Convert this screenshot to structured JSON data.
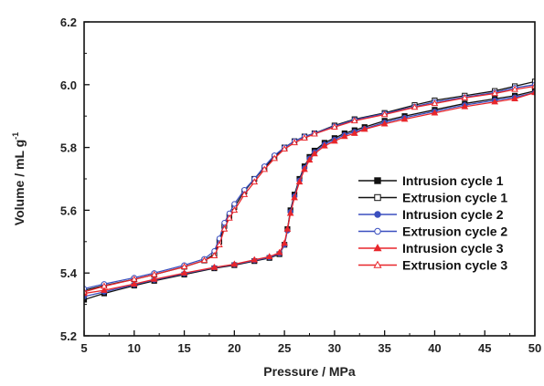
{
  "chart_data": {
    "type": "line",
    "xlabel": "Pressure / MPa",
    "ylabel": "Volume / mL g",
    "ylabel_sup": "-1",
    "xlim": [
      5,
      50
    ],
    "ylim": [
      5.2,
      6.2
    ],
    "xticks": [
      5,
      10,
      15,
      20,
      25,
      30,
      35,
      40,
      45,
      50
    ],
    "yticks": [
      5.2,
      5.4,
      5.6,
      5.8,
      6.0,
      6.2
    ],
    "ytick_labels": [
      "5.2",
      "5.4",
      "5.6",
      "5.8",
      "6.0",
      "6.2"
    ],
    "grid": false,
    "legend_position": "right",
    "series": [
      {
        "name": "Intrusion cycle 1",
        "color": "#111111",
        "marker": "square",
        "filled": true,
        "x": [
          5,
          7,
          10,
          12,
          15,
          18,
          20,
          22,
          23.5,
          24.5,
          25,
          25.3,
          25.6,
          26,
          26.5,
          27,
          27.5,
          28,
          29,
          30,
          31,
          32,
          33,
          35,
          37,
          40,
          43,
          46,
          48,
          50
        ],
        "y": [
          5.315,
          5.335,
          5.36,
          5.375,
          5.395,
          5.415,
          5.425,
          5.438,
          5.448,
          5.46,
          5.49,
          5.54,
          5.6,
          5.65,
          5.7,
          5.74,
          5.77,
          5.79,
          5.815,
          5.83,
          5.845,
          5.855,
          5.865,
          5.885,
          5.9,
          5.92,
          5.94,
          5.955,
          5.965,
          5.98
        ]
      },
      {
        "name": "Extrusion cycle 1",
        "color": "#111111",
        "marker": "square",
        "filled": false,
        "x": [
          5,
          7,
          10,
          12,
          15,
          17,
          18,
          18.5,
          19,
          19.5,
          20,
          21,
          22,
          23,
          24,
          25,
          26,
          27,
          28,
          30,
          32,
          35,
          38,
          40,
          43,
          46,
          48,
          50
        ],
        "y": [
          5.345,
          5.36,
          5.38,
          5.395,
          5.42,
          5.44,
          5.46,
          5.5,
          5.55,
          5.58,
          5.61,
          5.66,
          5.7,
          5.735,
          5.77,
          5.8,
          5.82,
          5.835,
          5.845,
          5.87,
          5.89,
          5.91,
          5.935,
          5.95,
          5.965,
          5.98,
          5.995,
          6.01
        ]
      },
      {
        "name": "Intrusion cycle 2",
        "color": "#3a4fbf",
        "marker": "circle",
        "filled": true,
        "x": [
          5,
          7,
          10,
          12,
          15,
          18,
          20,
          22,
          23.5,
          24.5,
          25,
          25.3,
          25.6,
          26,
          26.5,
          27,
          27.5,
          28,
          29,
          30,
          31,
          32,
          33,
          35,
          37,
          40,
          43,
          46,
          48,
          50
        ],
        "y": [
          5.325,
          5.34,
          5.363,
          5.378,
          5.398,
          5.417,
          5.427,
          5.44,
          5.45,
          5.462,
          5.49,
          5.535,
          5.595,
          5.645,
          5.695,
          5.735,
          5.765,
          5.785,
          5.81,
          5.825,
          5.84,
          5.85,
          5.86,
          5.88,
          5.895,
          5.915,
          5.935,
          5.95,
          5.96,
          5.975
        ]
      },
      {
        "name": "Extrusion cycle 2",
        "color": "#3a4fbf",
        "marker": "circle",
        "filled": false,
        "x": [
          5,
          7,
          10,
          12,
          15,
          17,
          18,
          18.5,
          19,
          19.5,
          20,
          21,
          22,
          23,
          24,
          25,
          26,
          27,
          28,
          30,
          32,
          35,
          38,
          40,
          43,
          46,
          48,
          50
        ],
        "y": [
          5.35,
          5.365,
          5.385,
          5.4,
          5.425,
          5.445,
          5.47,
          5.51,
          5.56,
          5.59,
          5.62,
          5.665,
          5.7,
          5.74,
          5.775,
          5.8,
          5.82,
          5.835,
          5.845,
          5.868,
          5.888,
          5.908,
          5.93,
          5.945,
          5.96,
          5.975,
          5.99,
          6.0
        ]
      },
      {
        "name": "Intrusion cycle 3",
        "color": "#e8262b",
        "marker": "triangle",
        "filled": true,
        "x": [
          5,
          7,
          10,
          12,
          15,
          18,
          20,
          22,
          23.5,
          24.5,
          25,
          25.3,
          25.6,
          26,
          26.5,
          27,
          27.5,
          28,
          29,
          30,
          31,
          32,
          33,
          35,
          37,
          40,
          43,
          46,
          48,
          50
        ],
        "y": [
          5.335,
          5.345,
          5.365,
          5.38,
          5.4,
          5.418,
          5.428,
          5.442,
          5.452,
          5.465,
          5.495,
          5.54,
          5.59,
          5.64,
          5.69,
          5.73,
          5.76,
          5.78,
          5.805,
          5.82,
          5.835,
          5.845,
          5.858,
          5.875,
          5.89,
          5.91,
          5.93,
          5.945,
          5.955,
          5.975
        ]
      },
      {
        "name": "Extrusion cycle 3",
        "color": "#e8262b",
        "marker": "triangle",
        "filled": false,
        "x": [
          5,
          7,
          10,
          12,
          15,
          17,
          18,
          18.5,
          19,
          19.5,
          20,
          21,
          22,
          23,
          24,
          25,
          26,
          27,
          28,
          30,
          32,
          35,
          38,
          40,
          43,
          46,
          48,
          50
        ],
        "y": [
          5.34,
          5.358,
          5.38,
          5.395,
          5.42,
          5.44,
          5.455,
          5.49,
          5.54,
          5.575,
          5.6,
          5.65,
          5.69,
          5.73,
          5.765,
          5.795,
          5.815,
          5.83,
          5.843,
          5.865,
          5.885,
          5.905,
          5.928,
          5.94,
          5.958,
          5.972,
          5.985,
          5.995
        ]
      }
    ]
  }
}
